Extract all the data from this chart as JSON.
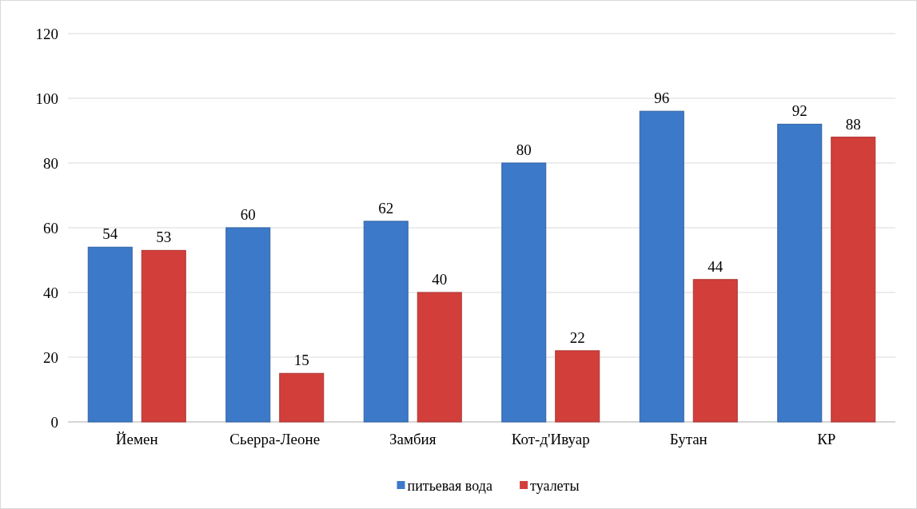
{
  "chart_data": {
    "type": "bar",
    "categories": [
      "Йемен",
      "Сьерра-Леоне",
      "Замбия",
      "Кот-д'Ивуар",
      "Бутан",
      "КР"
    ],
    "series": [
      {
        "name": "питьевая вода",
        "color": "#3c79c9",
        "values": [
          54,
          60,
          62,
          80,
          96,
          92
        ]
      },
      {
        "name": "туалеты",
        "color": "#d23f3b",
        "values": [
          53,
          15,
          40,
          22,
          44,
          88
        ]
      }
    ],
    "ylim": [
      0,
      120
    ],
    "yticks": [
      0,
      20,
      40,
      60,
      80,
      100,
      120
    ],
    "grid": "y",
    "legend": "bottom",
    "data_labels": true
  }
}
